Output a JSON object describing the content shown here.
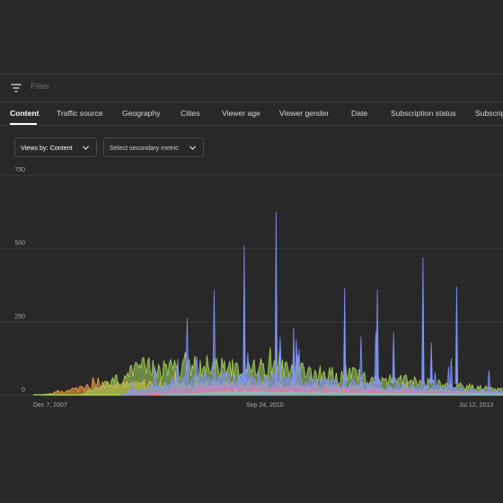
{
  "filter": {
    "placeholder": "Filter",
    "icon": "filter-icon"
  },
  "tabs": [
    {
      "label": "Content",
      "active": true
    },
    {
      "label": "Traffic source",
      "active": false
    },
    {
      "label": "Geography",
      "active": false
    },
    {
      "label": "Cities",
      "active": false
    },
    {
      "label": "Viewer age",
      "active": false
    },
    {
      "label": "Viewer gender",
      "active": false
    },
    {
      "label": "Date",
      "active": false
    },
    {
      "label": "Subscription status",
      "active": false
    },
    {
      "label": "Subscrip",
      "active": false
    }
  ],
  "controls": {
    "primary_metric": "Views by: Content",
    "secondary_metric": "Select secondary metric"
  },
  "chart_data": {
    "type": "area",
    "y_ticks": [
      "750",
      "500",
      "250",
      "0"
    ],
    "x_tick_labels": [
      "Dec 7, 2007",
      "Sep 24, 2010",
      "Jul 12, 2013"
    ],
    "ylim": [
      0,
      750
    ],
    "grid": true,
    "series": [
      {
        "color": "#ffa63c",
        "start_date": "2008-01-10",
        "baseline": 35,
        "peak": 120
      },
      {
        "color": "#a8d65a",
        "start_date": "2008-07-20",
        "baseline": 90,
        "peak": 180
      },
      {
        "color": "#7f93ff",
        "start_date": "2009-02-01",
        "baseline": 55,
        "peak": 625
      },
      {
        "color": "#c87fd8",
        "start_date": "2009-04-01",
        "baseline": 25,
        "peak": 60
      },
      {
        "color": "#ef7a7a",
        "start_date": "2009-06-01",
        "baseline": 15,
        "peak": 40
      },
      {
        "color": "#6fd2c8",
        "start_date": "2009-08-01",
        "baseline": 10,
        "peak": 30
      }
    ],
    "spikes": [
      {
        "date": "2010-09-15",
        "value": 510
      },
      {
        "date": "2011-02-15",
        "value": 625
      },
      {
        "date": "2012-01-10",
        "value": 365
      },
      {
        "date": "2012-06-15",
        "value": 360
      },
      {
        "date": "2013-01-20",
        "value": 470
      },
      {
        "date": "2013-07-01",
        "value": 370
      },
      {
        "date": "2011-05-10",
        "value": 230
      },
      {
        "date": "2012-09-01",
        "value": 215
      },
      {
        "date": "2013-03-01",
        "value": 180
      }
    ]
  },
  "colors": {
    "background": "#282828",
    "grid": "#3a3a3a",
    "axis_text": "#aaaaaa"
  }
}
